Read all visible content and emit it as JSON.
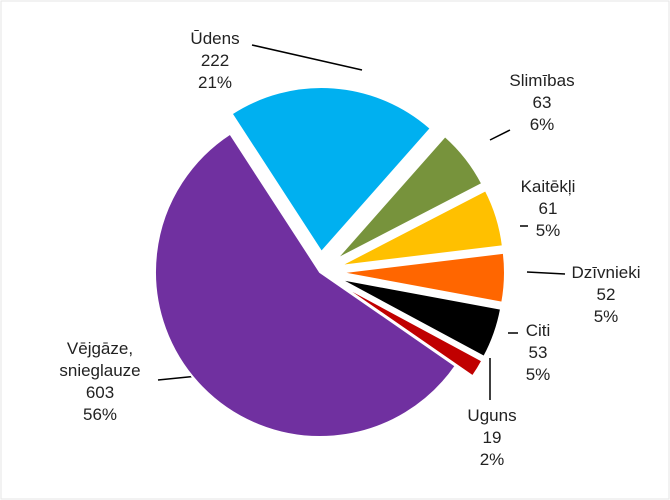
{
  "chart_data": {
    "type": "pie",
    "categories": [
      "Ūdens",
      "Slimības",
      "Kaitēkļi",
      "Dzīvnieki",
      "Citi",
      "Uguns",
      "Vējgāze, snieglauze"
    ],
    "values": [
      222,
      63,
      61,
      52,
      53,
      19,
      603
    ],
    "percent_labels": [
      "21%",
      "6%",
      "5%",
      "5%",
      "5%",
      "2%",
      "56%"
    ],
    "colors": [
      "#00b0f0",
      "#77933c",
      "#ffc000",
      "#ff6600",
      "#000000",
      "#c00000",
      "#7030a0"
    ],
    "exploded": [
      true,
      true,
      true,
      true,
      true,
      true,
      false
    ]
  }
}
